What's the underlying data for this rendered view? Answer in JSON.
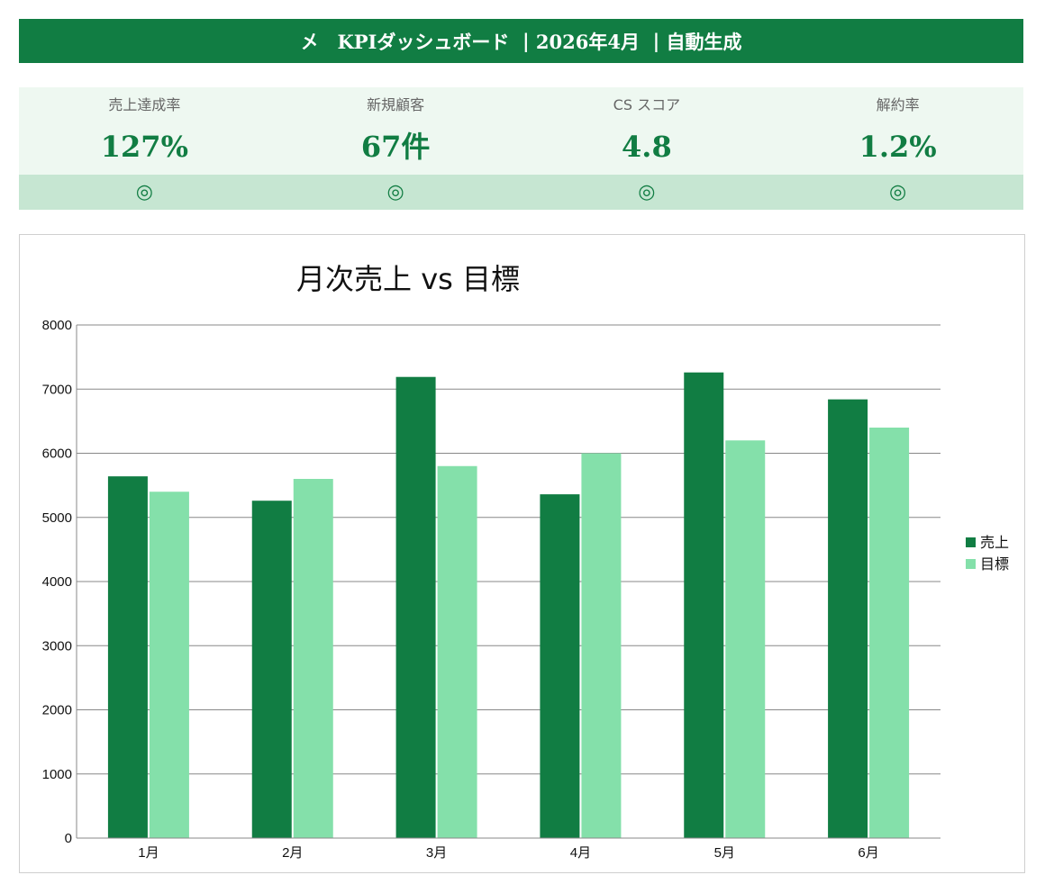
{
  "header": {
    "logo_glyph": "㐅",
    "title": "KPIダッシュボード",
    "separator": "|",
    "period": "2026年4月",
    "note": "自動生成"
  },
  "kpis": [
    {
      "label": "売上達成率",
      "value": "127%",
      "mark": "◎"
    },
    {
      "label": "新規顧客",
      "value": "67件",
      "mark": "◎"
    },
    {
      "label": "CS スコア",
      "value": "4.8",
      "mark": "◎"
    },
    {
      "label": "解約率",
      "value": "1.2%",
      "mark": "◎"
    }
  ],
  "colors": {
    "brand": "#117d43",
    "kpi_bg": "#eef8f1",
    "kpi_mark_bg": "#c6e6d2",
    "series_sales": "#117d43",
    "series_target": "#84e0aa",
    "grid": "#888888"
  },
  "chart_data": {
    "type": "bar",
    "title": "月次売上 vs 目標",
    "xlabel": "",
    "ylabel": "",
    "categories": [
      "1月",
      "2月",
      "3月",
      "4月",
      "5月",
      "6月"
    ],
    "series": [
      {
        "name": "売上",
        "values": [
          5640,
          5260,
          7190,
          5360,
          7260,
          6840
        ],
        "color": "#117d43"
      },
      {
        "name": "目標",
        "values": [
          5400,
          5600,
          5800,
          6000,
          6200,
          6400
        ],
        "color": "#84e0aa"
      }
    ],
    "ylim": [
      0,
      8000
    ],
    "yticks": [
      0,
      1000,
      2000,
      3000,
      4000,
      5000,
      6000,
      7000,
      8000
    ],
    "grid": true,
    "legend": "right"
  }
}
